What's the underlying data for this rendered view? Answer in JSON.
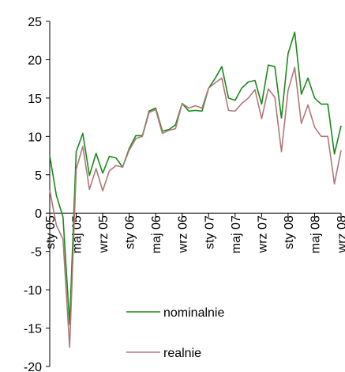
{
  "chart_data": {
    "type": "line",
    "title": "",
    "xlabel": "",
    "ylabel": "",
    "ylim": [
      -20,
      25
    ],
    "yticks": [
      -20,
      -15,
      -10,
      -5,
      0,
      5,
      10,
      15,
      20,
      25
    ],
    "ytick_labels": [
      "-20",
      "-15",
      "-10",
      "-5",
      "0",
      "5",
      "10",
      "15",
      "20",
      "25"
    ],
    "xtick_labels": [
      "sty 05",
      "maj 05",
      "wrz 05",
      "sty 06",
      "maj 06",
      "wrz 06",
      "sty 07",
      "maj 07",
      "wrz 07",
      "sty 08",
      "maj 08",
      "wrz 08"
    ],
    "xtick_month_index": [
      0,
      4,
      8,
      12,
      16,
      20,
      24,
      28,
      32,
      36,
      40,
      44
    ],
    "x_month_count": 45,
    "grid": false,
    "legend_position": "bottom-center",
    "series": [
      {
        "name": "nominalnie",
        "color": "#1a8a1a",
        "values": [
          7.5,
          2.3,
          -0.5,
          -14.5,
          8.0,
          10.4,
          4.9,
          7.8,
          5.2,
          7.4,
          7.2,
          6.0,
          8.4,
          10.1,
          10.1,
          13.3,
          13.7,
          10.7,
          10.9,
          11.5,
          14.3,
          13.3,
          13.4,
          13.3,
          16.3,
          17.6,
          19.1,
          15.0,
          14.7,
          16.3,
          17.1,
          17.3,
          14.2,
          19.3,
          19.1,
          12.4,
          20.8,
          23.6,
          15.5,
          17.6,
          15.0,
          14.2,
          14.2,
          7.7,
          11.4
        ]
      },
      {
        "name": "realnie",
        "color": "#b07878",
        "values": [
          3.0,
          -1.6,
          -3.4,
          -17.5,
          5.7,
          8.7,
          3.1,
          5.8,
          2.9,
          5.5,
          6.2,
          6.0,
          8.2,
          9.7,
          10.0,
          13.1,
          13.5,
          10.4,
          10.8,
          11.0,
          14.3,
          13.7,
          14.0,
          13.7,
          16.3,
          17.0,
          17.6,
          13.4,
          13.3,
          14.3,
          15.0,
          16.1,
          12.3,
          16.2,
          15.1,
          8.0,
          16.0,
          19.0,
          11.7,
          14.1,
          11.2,
          10.0,
          10.0,
          3.8,
          8.2
        ]
      }
    ]
  }
}
